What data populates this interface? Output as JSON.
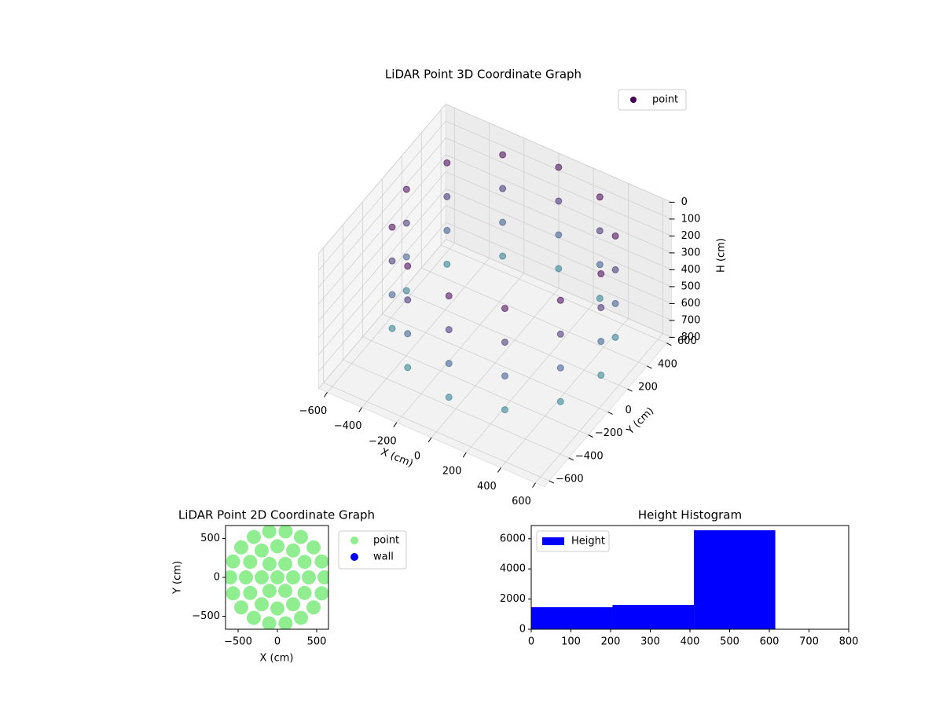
{
  "chart_data": [
    {
      "type": "scatter3d",
      "title": "LiDAR Point 3D Coordinate Graph",
      "x_label": "X (cm)",
      "y_label": "Y (cm)",
      "z_label": "H (cm)",
      "xlim": [
        -650,
        650
      ],
      "ylim": [
        -650,
        650
      ],
      "zlim": [
        800,
        0
      ],
      "xticks": [
        {
          "value": -600,
          "label": "−600"
        },
        {
          "value": -400,
          "label": "−400"
        },
        {
          "value": -200,
          "label": "−200"
        },
        0,
        200,
        400,
        600
      ],
      "yticks": [
        {
          "value": -600,
          "label": "−600"
        },
        {
          "value": -400,
          "label": "−400"
        },
        {
          "value": -200,
          "label": "−200"
        },
        0,
        200,
        400,
        600
      ],
      "zticks": [
        0,
        100,
        200,
        300,
        400,
        500,
        600,
        700,
        800
      ],
      "colormap": "viridis",
      "legend": "upper right",
      "series": [
        {
          "name": "point",
          "color": "#440154",
          "x": [
            610,
            535,
            330,
            50,
            -230,
            -435,
            -510,
            -435,
            -230,
            50,
            330,
            535,
            610,
            535,
            330,
            50,
            -230,
            -435,
            -510,
            -435,
            -230,
            50,
            330,
            535,
            610,
            535,
            330,
            50,
            -230,
            -435,
            -510,
            -435,
            -230,
            50,
            330,
            535,
            610,
            535,
            330,
            50,
            -230,
            -435,
            -510,
            -435,
            -230,
            50,
            330,
            535
          ],
          "y": [
            0,
            280,
            485,
            560,
            485,
            280,
            0,
            -280,
            -485,
            -560,
            -485,
            -280,
            0,
            280,
            485,
            560,
            485,
            280,
            0,
            -280,
            -485,
            -560,
            -485,
            -280,
            0,
            280,
            485,
            560,
            485,
            280,
            0,
            -280,
            -485,
            -560,
            -485,
            -280,
            0,
            280,
            485,
            560,
            485,
            280,
            0,
            -280,
            -485,
            -560,
            -485,
            -280
          ],
          "z": [
            0,
            0,
            0,
            0,
            0,
            0,
            0,
            0,
            0,
            0,
            0,
            0,
            200,
            200,
            200,
            200,
            200,
            200,
            200,
            200,
            200,
            200,
            200,
            200,
            400,
            400,
            400,
            400,
            400,
            400,
            400,
            400,
            400,
            400,
            400,
            400,
            600,
            600,
            600,
            600,
            600,
            600,
            600,
            600,
            600,
            600,
            600,
            600
          ]
        }
      ]
    },
    {
      "type": "scatter",
      "title": "LiDAR Point 2D Coordinate Graph",
      "x_label": "X (cm)",
      "y_label": "Y (cm)",
      "xlim": [
        -660,
        650
      ],
      "ylim": [
        -667,
        667
      ],
      "xticks": [
        {
          "value": -500,
          "label": "−500"
        },
        0,
        500
      ],
      "yticks": [
        {
          "value": -500,
          "label": "−500"
        },
        0,
        500
      ],
      "legend": "outside right",
      "series": [
        {
          "name": "point",
          "color": "#90ee90",
          "x": [
            0,
            200,
            100,
            -100,
            -200,
            -100,
            100,
            400,
            346,
            200,
            0,
            -200,
            -346,
            -400,
            -346,
            -200,
            0,
            200,
            346,
            600,
            564,
            460,
            300,
            104,
            -104,
            -300,
            -460,
            -564,
            -600,
            -564,
            -460,
            -300,
            -104,
            104,
            300,
            460,
            564
          ],
          "y": [
            0,
            0,
            173,
            173,
            0,
            -173,
            -173,
            0,
            200,
            346,
            400,
            346,
            200,
            0,
            -200,
            -346,
            -400,
            -346,
            -200,
            0,
            205,
            386,
            520,
            591,
            591,
            520,
            386,
            205,
            0,
            -205,
            -386,
            -520,
            -591,
            -591,
            -520,
            -386,
            -205
          ]
        },
        {
          "name": "wall",
          "color": "#0000ff",
          "x": [],
          "y": []
        }
      ]
    },
    {
      "type": "histogram",
      "title": "Height Histogram",
      "xlim": [
        0,
        800
      ],
      "ylim": [
        0,
        6875
      ],
      "xticks": [
        0,
        100,
        200,
        300,
        400,
        500,
        600,
        700,
        800
      ],
      "yticks": [
        0,
        2000,
        4000,
        6000
      ],
      "legend": "upper left",
      "bins": [
        0,
        205,
        410,
        615
      ],
      "series": [
        {
          "name": "Height",
          "color": "#0000ff",
          "values": [
            1460,
            1615,
            6560
          ]
        }
      ]
    }
  ]
}
